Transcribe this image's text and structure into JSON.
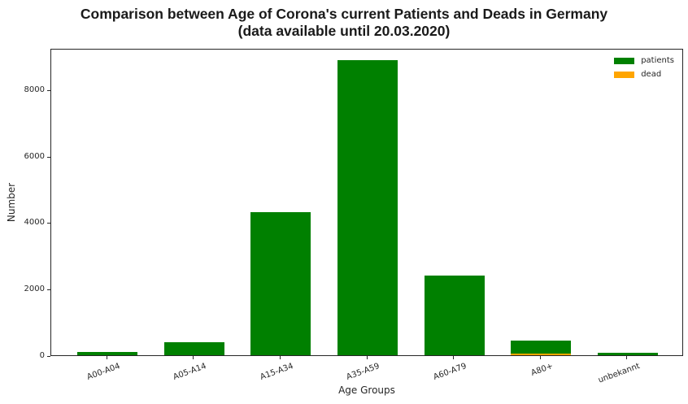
{
  "figure": {
    "title_line1": "Comparison between Age of Corona's current Patients and Deads in Germany",
    "title_line2": "(data available until 20.03.2020)"
  },
  "axes": {
    "xlabel": "Age Groups",
    "ylabel": "Number",
    "ytick_labels": [
      "0",
      "2000",
      "4000",
      "6000",
      "8000"
    ]
  },
  "legend": {
    "items": [
      {
        "label": "patients",
        "color": "#008000"
      },
      {
        "label": "dead",
        "color": "#FFA500"
      }
    ]
  },
  "colors": {
    "patients": "#008000",
    "dead": "#FFA500",
    "axis": "#262626",
    "background": "#ffffff"
  },
  "chart_data": {
    "type": "bar",
    "title": "Comparison between Age of Corona's current Patients and Deads in Germany (data available until 20.03.2020)",
    "categories": [
      "A00-A04",
      "A05-A14",
      "A15-A34",
      "A35-A59",
      "A60-A79",
      "A80+",
      "unbekannt"
    ],
    "series": [
      {
        "name": "patients",
        "color": "#008000",
        "values": [
          105,
          395,
          4310,
          8890,
          2410,
          430,
          80
        ]
      },
      {
        "name": "dead",
        "color": "#FFA500",
        "values": [
          0,
          0,
          0,
          0,
          0,
          45,
          0
        ]
      }
    ],
    "xlabel": "Age Groups",
    "ylabel": "Number",
    "ylim": [
      0,
      9260
    ],
    "yticks": [
      0,
      2000,
      4000,
      6000,
      8000
    ],
    "xtick_rotation_deg": 20,
    "legend_position": "upper right",
    "grid": false,
    "bar_layout": "overlaid-same-x"
  }
}
